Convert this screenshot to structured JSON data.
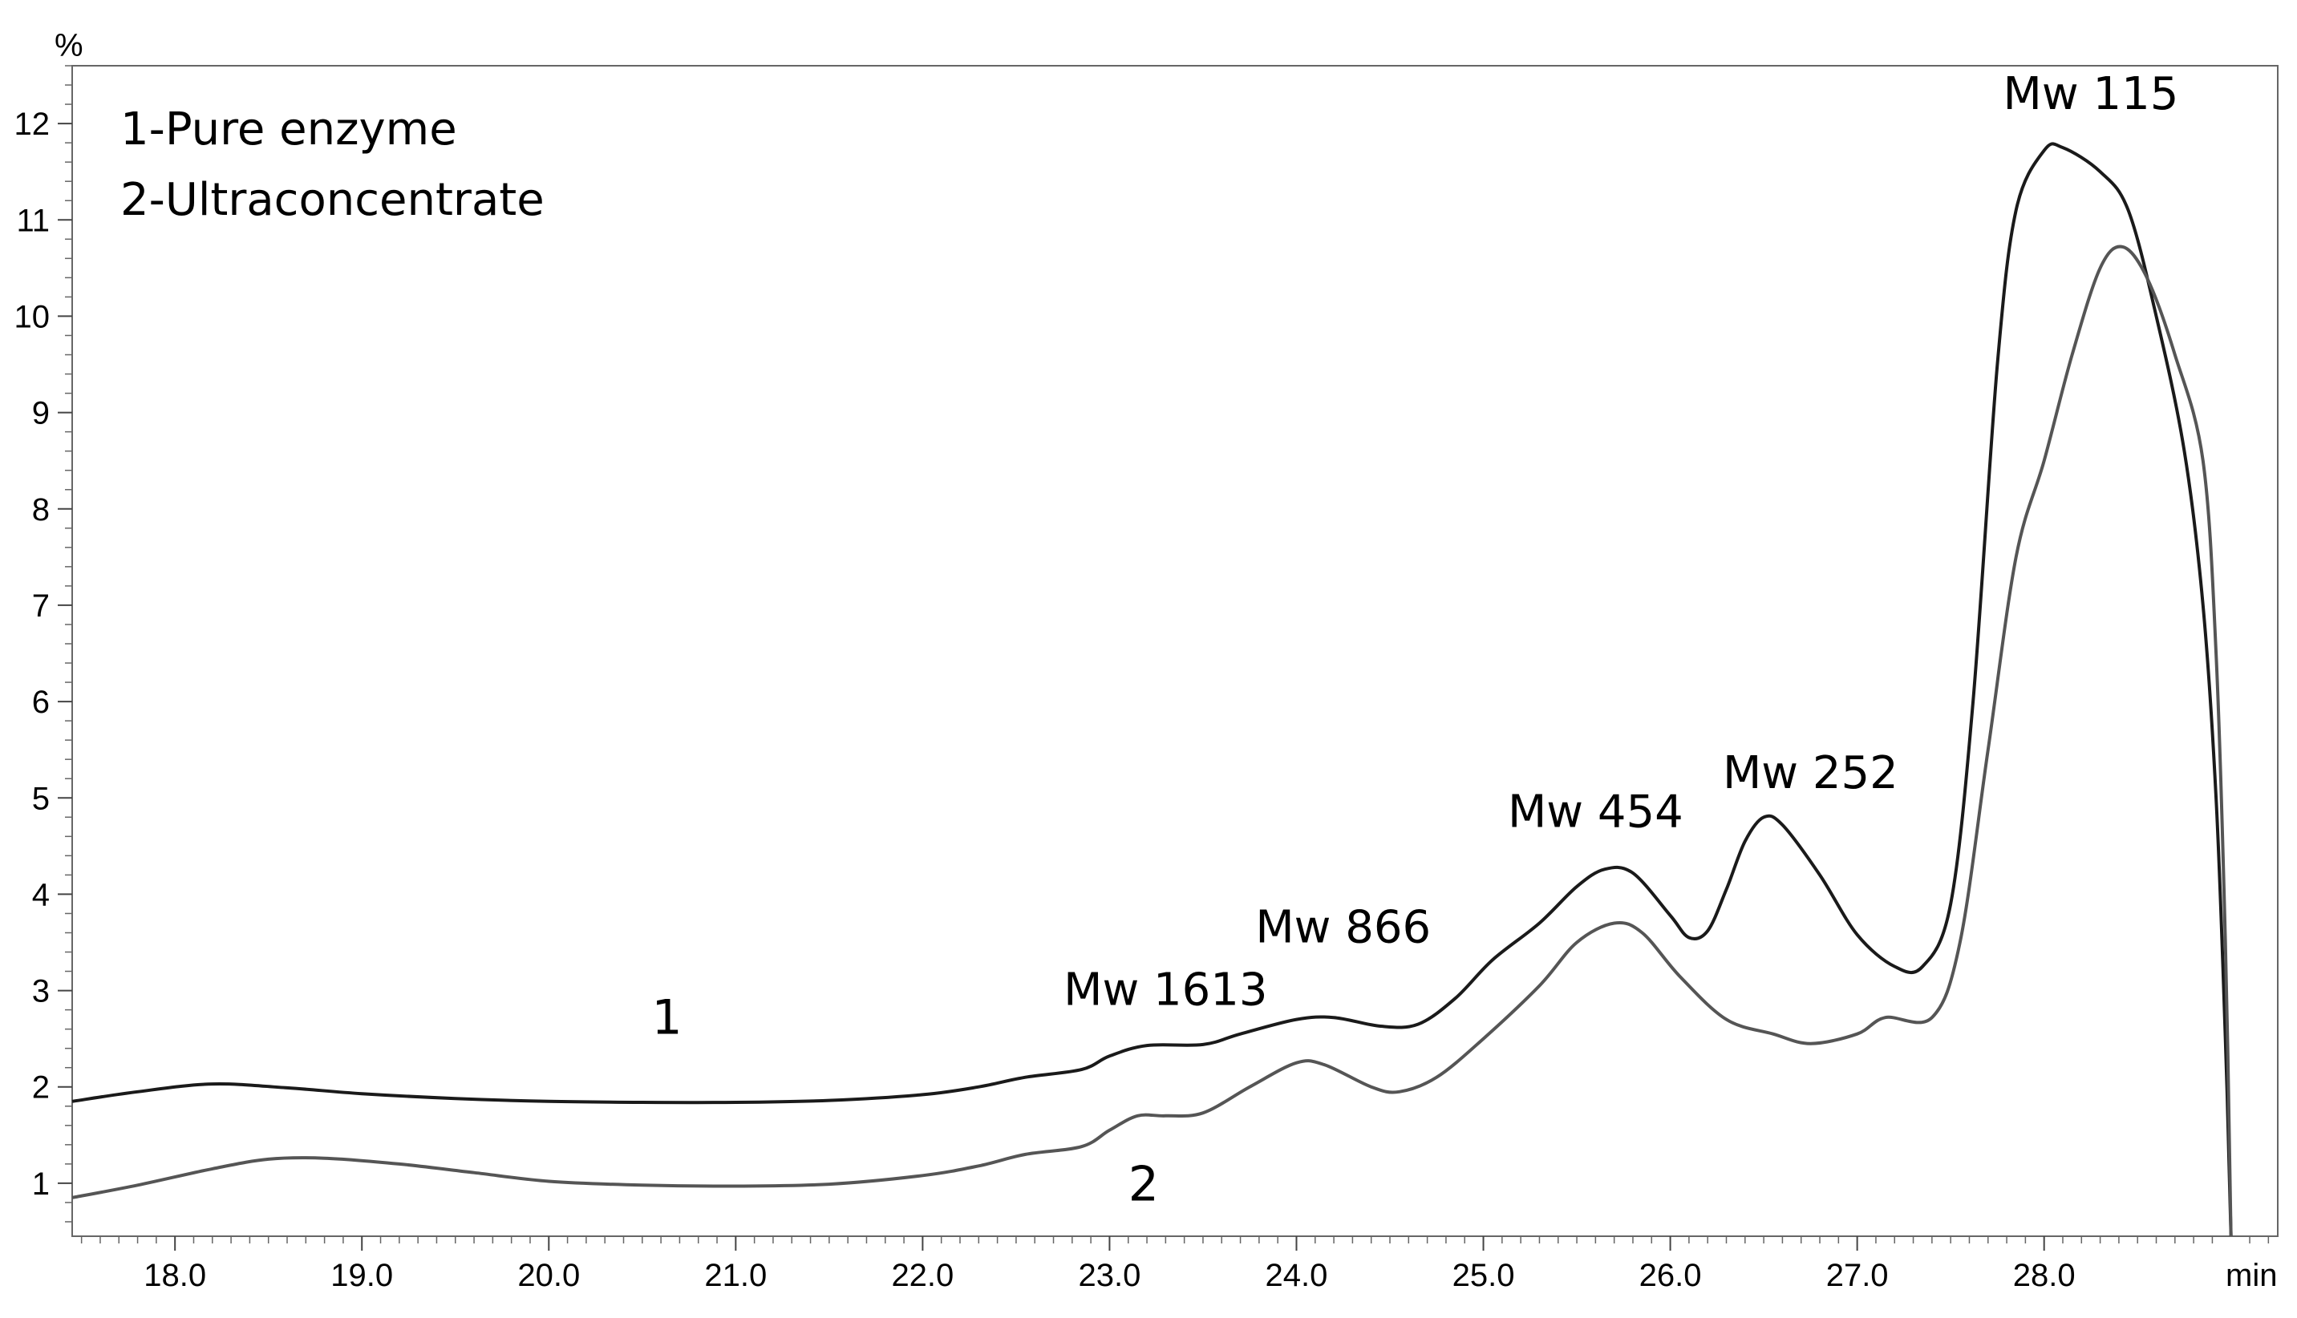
{
  "chart_data": {
    "type": "line",
    "title": "",
    "xlabel": "min",
    "ylabel": "%",
    "xlim": [
      17.45,
      29.25
    ],
    "ylim": [
      0.45,
      12.6
    ],
    "grid": false,
    "x_ticks": [
      "18.0",
      "19.0",
      "20.0",
      "21.0",
      "22.0",
      "23.0",
      "24.0",
      "25.0",
      "26.0",
      "27.0",
      "28.0"
    ],
    "y_ticks": [
      "1",
      "2",
      "3",
      "4",
      "5",
      "6",
      "7",
      "8",
      "9",
      "10",
      "11",
      "12"
    ],
    "legend": {
      "placement": "top-left",
      "entries": [
        "1-Pure enzyme",
        "2-Ultraconcentrate"
      ]
    },
    "annotations": [
      {
        "text": "Mw 1613",
        "x": 23.3,
        "y": 2.85
      },
      {
        "text": "Mw 866",
        "x": 24.25,
        "y": 3.5
      },
      {
        "text": "Mw 454",
        "x": 25.6,
        "y": 4.7
      },
      {
        "text": "Mw 252",
        "x": 26.75,
        "y": 5.1
      },
      {
        "text": "Mw 115",
        "x": 28.25,
        "y": 12.15
      }
    ],
    "series": [
      {
        "name": "1",
        "label_text": "1",
        "label_pos": {
          "x": 20.55,
          "y": 2.55
        },
        "color": "#1a1a1a",
        "points": [
          [
            17.45,
            1.85
          ],
          [
            17.8,
            1.95
          ],
          [
            18.2,
            2.03
          ],
          [
            18.6,
            1.99
          ],
          [
            19.0,
            1.93
          ],
          [
            19.5,
            1.88
          ],
          [
            20.0,
            1.85
          ],
          [
            20.5,
            1.84
          ],
          [
            21.0,
            1.84
          ],
          [
            21.5,
            1.86
          ],
          [
            22.0,
            1.92
          ],
          [
            22.3,
            2.0
          ],
          [
            22.55,
            2.1
          ],
          [
            22.85,
            2.18
          ],
          [
            23.0,
            2.32
          ],
          [
            23.2,
            2.43
          ],
          [
            23.5,
            2.44
          ],
          [
            23.7,
            2.55
          ],
          [
            24.0,
            2.7
          ],
          [
            24.2,
            2.72
          ],
          [
            24.45,
            2.63
          ],
          [
            24.65,
            2.65
          ],
          [
            24.85,
            2.92
          ],
          [
            25.05,
            3.32
          ],
          [
            25.3,
            3.7
          ],
          [
            25.5,
            4.08
          ],
          [
            25.65,
            4.26
          ],
          [
            25.8,
            4.22
          ],
          [
            26.0,
            3.78
          ],
          [
            26.1,
            3.55
          ],
          [
            26.2,
            3.62
          ],
          [
            26.3,
            4.05
          ],
          [
            26.4,
            4.55
          ],
          [
            26.5,
            4.8
          ],
          [
            26.6,
            4.72
          ],
          [
            26.8,
            4.2
          ],
          [
            27.0,
            3.58
          ],
          [
            27.2,
            3.25
          ],
          [
            27.35,
            3.25
          ],
          [
            27.5,
            3.9
          ],
          [
            27.62,
            6.0
          ],
          [
            27.75,
            9.5
          ],
          [
            27.85,
            11.1
          ],
          [
            28.0,
            11.72
          ],
          [
            28.1,
            11.75
          ],
          [
            28.3,
            11.5
          ],
          [
            28.45,
            11.1
          ],
          [
            28.6,
            10.0
          ],
          [
            28.75,
            8.6
          ],
          [
            28.85,
            7.0
          ],
          [
            28.92,
            5.0
          ],
          [
            28.97,
            2.5
          ],
          [
            29.0,
            0.45
          ]
        ]
      },
      {
        "name": "2",
        "label_text": "2",
        "label_pos": {
          "x": 23.1,
          "y": 0.82
        },
        "color": "#555555",
        "points": [
          [
            17.45,
            0.85
          ],
          [
            17.8,
            0.98
          ],
          [
            18.2,
            1.15
          ],
          [
            18.5,
            1.25
          ],
          [
            18.8,
            1.26
          ],
          [
            19.2,
            1.2
          ],
          [
            19.6,
            1.11
          ],
          [
            20.0,
            1.02
          ],
          [
            20.5,
            0.98
          ],
          [
            21.0,
            0.97
          ],
          [
            21.5,
            0.99
          ],
          [
            22.0,
            1.08
          ],
          [
            22.3,
            1.18
          ],
          [
            22.55,
            1.3
          ],
          [
            22.85,
            1.38
          ],
          [
            23.0,
            1.55
          ],
          [
            23.15,
            1.7
          ],
          [
            23.3,
            1.7
          ],
          [
            23.5,
            1.73
          ],
          [
            23.75,
            2.0
          ],
          [
            24.0,
            2.25
          ],
          [
            24.15,
            2.23
          ],
          [
            24.4,
            2.0
          ],
          [
            24.55,
            1.95
          ],
          [
            24.75,
            2.1
          ],
          [
            25.0,
            2.5
          ],
          [
            25.3,
            3.05
          ],
          [
            25.5,
            3.5
          ],
          [
            25.7,
            3.7
          ],
          [
            25.85,
            3.6
          ],
          [
            26.05,
            3.15
          ],
          [
            26.3,
            2.7
          ],
          [
            26.55,
            2.55
          ],
          [
            26.75,
            2.45
          ],
          [
            27.0,
            2.55
          ],
          [
            27.15,
            2.72
          ],
          [
            27.4,
            2.72
          ],
          [
            27.55,
            3.5
          ],
          [
            27.7,
            5.5
          ],
          [
            27.85,
            7.5
          ],
          [
            28.0,
            8.5
          ],
          [
            28.15,
            9.6
          ],
          [
            28.3,
            10.5
          ],
          [
            28.42,
            10.72
          ],
          [
            28.55,
            10.4
          ],
          [
            28.7,
            9.6
          ],
          [
            28.85,
            8.5
          ],
          [
            28.92,
            6.5
          ],
          [
            28.97,
            3.5
          ],
          [
            29.0,
            0.45
          ]
        ]
      }
    ]
  }
}
